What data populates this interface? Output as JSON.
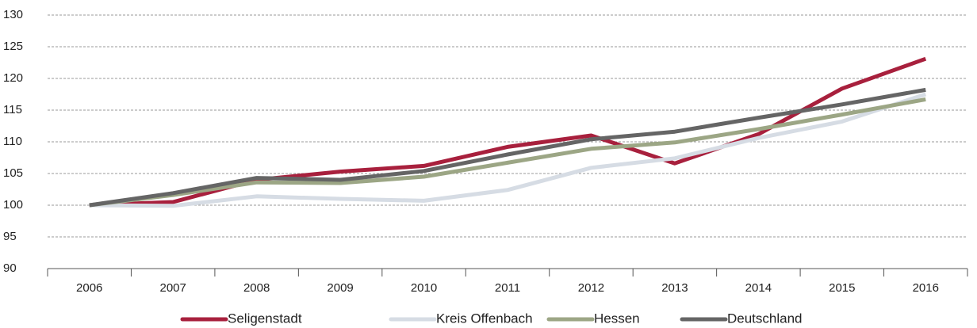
{
  "chart_data": {
    "type": "line",
    "categories": [
      "2006",
      "2007",
      "2008",
      "2009",
      "2010",
      "2011",
      "2012",
      "2013",
      "2014",
      "2015",
      "2016"
    ],
    "series": [
      {
        "name": "Seligenstadt",
        "color": "#a8203d",
        "values": [
          100,
          100.5,
          104,
          105.3,
          106.2,
          109.2,
          111.0,
          106.6,
          111.2,
          118.4,
          123.1
        ]
      },
      {
        "name": "Kreis Offenbach",
        "color": "#d6dce4",
        "values": [
          100,
          99.9,
          101.4,
          101.0,
          100.7,
          102.4,
          105.9,
          107.4,
          110.6,
          113.2,
          117.5
        ]
      },
      {
        "name": "Hessen",
        "color": "#9ca685",
        "values": [
          100,
          101.6,
          103.6,
          103.5,
          104.5,
          106.7,
          108.9,
          109.9,
          112.0,
          114.3,
          116.7
        ]
      },
      {
        "name": "Deutschland",
        "color": "#656565",
        "values": [
          100,
          101.9,
          104.3,
          104.0,
          105.4,
          108.0,
          110.4,
          111.6,
          113.8,
          115.9,
          118.2
        ]
      }
    ],
    "ylim": [
      90,
      130
    ],
    "yticks": [
      90,
      95,
      100,
      105,
      110,
      115,
      120,
      125,
      130
    ],
    "grid": true,
    "legend": "bottom"
  }
}
